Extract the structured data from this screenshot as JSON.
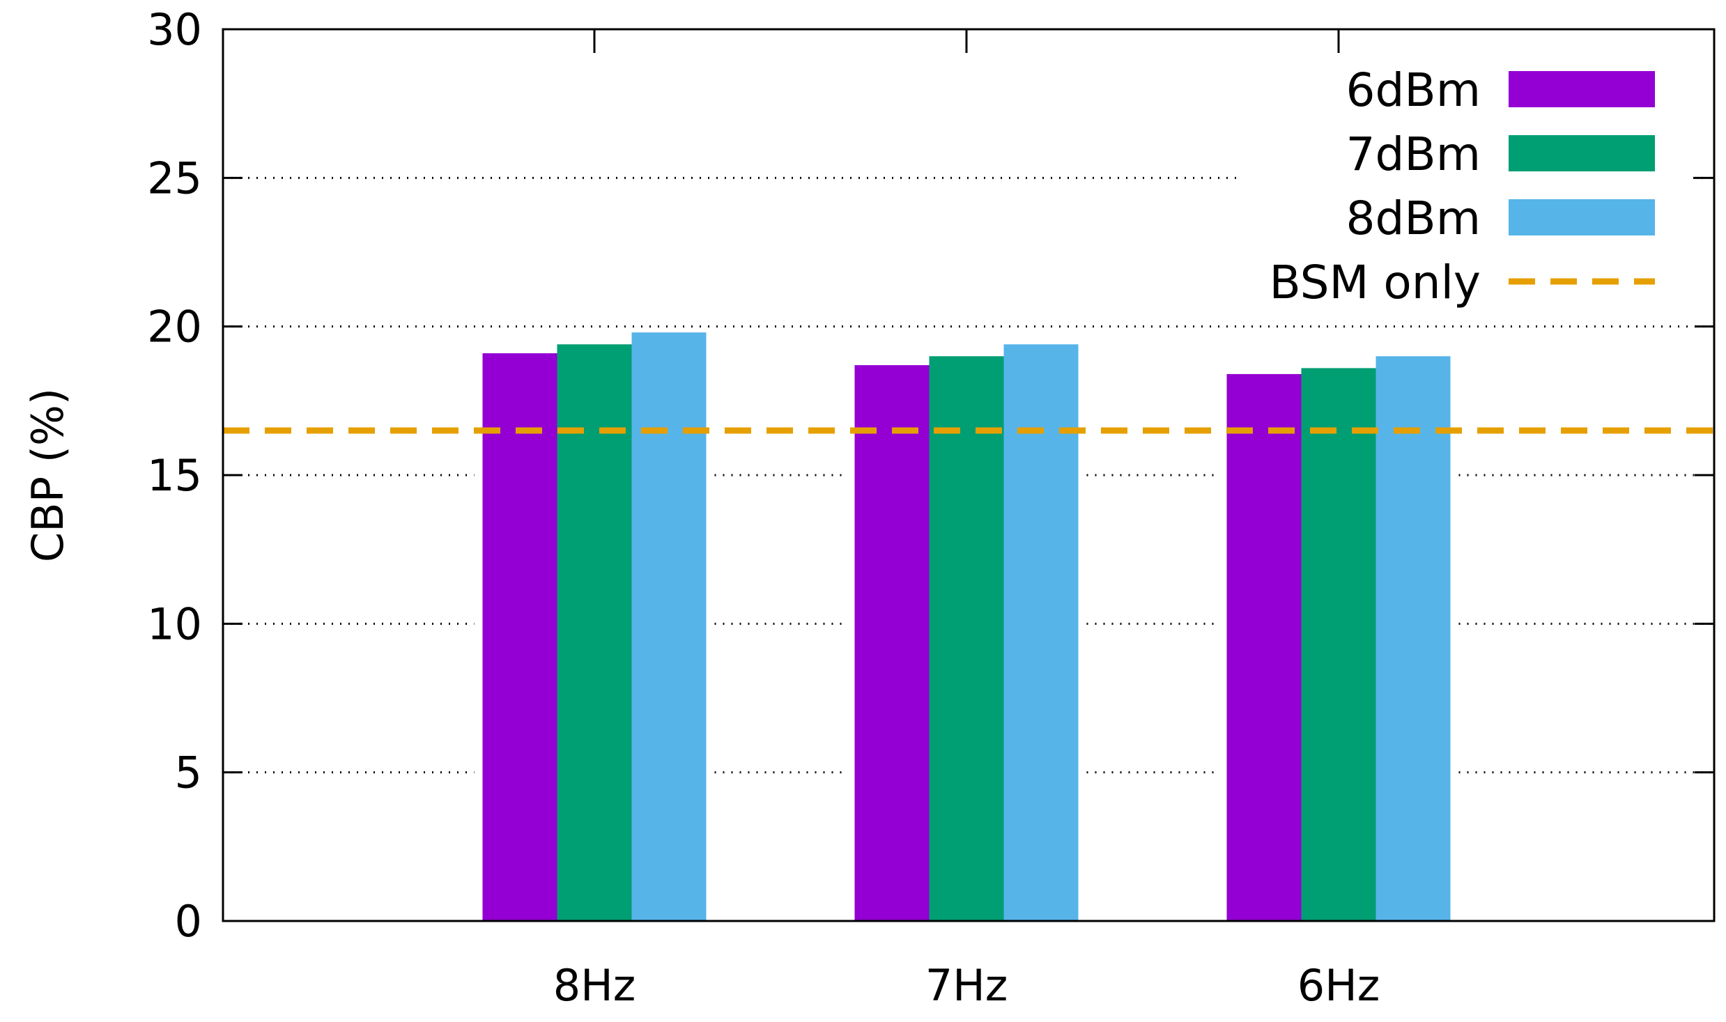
{
  "chart_data": {
    "type": "bar",
    "title": "",
    "xlabel": "",
    "ylabel": "CBP (%)",
    "ylim": [
      0,
      30
    ],
    "yticks": [
      0,
      5,
      10,
      15,
      20,
      25,
      30
    ],
    "grid": "horizontal dotted",
    "legend_position": "top-right",
    "categories": [
      "8Hz",
      "7Hz",
      "6Hz"
    ],
    "series": [
      {
        "name": "6dBm",
        "color": "#9400d3",
        "values": [
          19.1,
          18.7,
          18.4
        ]
      },
      {
        "name": "7dBm",
        "color": "#009e73",
        "values": [
          19.4,
          19.0,
          18.6
        ]
      },
      {
        "name": "8dBm",
        "color": "#56b4e9",
        "values": [
          19.8,
          19.4,
          19.0
        ]
      }
    ],
    "reference_line": {
      "name": "BSM only",
      "color": "#e69f00",
      "value": 16.5,
      "style": "dashed"
    }
  }
}
